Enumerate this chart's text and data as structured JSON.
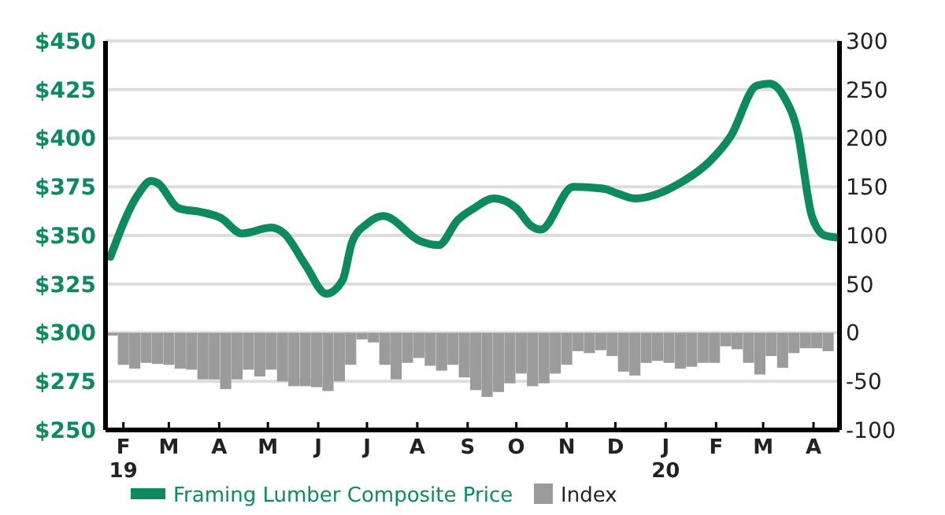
{
  "chart_data": {
    "type": "line",
    "xlim": [
      "2019-01-21",
      "2020-04-17"
    ],
    "xticks": [
      {
        "value": "2019-02-01",
        "label": "F\n19"
      },
      {
        "value": "2019-03-01",
        "label": "M"
      },
      {
        "value": "2019-04-01",
        "label": "A"
      },
      {
        "value": "2019-05-01",
        "label": "M"
      },
      {
        "value": "2019-06-01",
        "label": "J"
      },
      {
        "value": "2019-07-01",
        "label": "J"
      },
      {
        "value": "2019-08-01",
        "label": "A"
      },
      {
        "value": "2019-09-01",
        "label": "S"
      },
      {
        "value": "2019-10-01",
        "label": "O"
      },
      {
        "value": "2019-11-01",
        "label": "N"
      },
      {
        "value": "2019-12-01",
        "label": "D"
      },
      {
        "value": "2020-01-01",
        "label": "J\n20"
      },
      {
        "value": "2020-02-01",
        "label": "F"
      },
      {
        "value": "2020-03-01",
        "label": "M"
      },
      {
        "value": "2020-04-01",
        "label": "A"
      }
    ],
    "ylim": [
      250,
      450
    ],
    "yticks": [
      {
        "value": 250,
        "label": "$250"
      },
      {
        "value": 275,
        "label": "$275"
      },
      {
        "value": 300,
        "label": "$300"
      },
      {
        "value": 325,
        "label": "$325"
      },
      {
        "value": 350,
        "label": "$350"
      },
      {
        "value": 375,
        "label": "$375"
      },
      {
        "value": 400,
        "label": "$400"
      },
      {
        "value": 425,
        "label": "$425"
      },
      {
        "value": 450,
        "label": "$450"
      }
    ],
    "y2lim": [
      -100,
      300
    ],
    "y2ticks": [
      -100,
      -50,
      0,
      50,
      100,
      150,
      200,
      250,
      300
    ],
    "grid": "y",
    "legend": "bottom",
    "series": [
      {
        "type": "bar",
        "axis": "y2",
        "name": "Index",
        "color": "#9b9b9b",
        "x": [
          "2019-01-25",
          "2019-02-01",
          "2019-02-08",
          "2019-02-15",
          "2019-02-22",
          "2019-03-01",
          "2019-03-08",
          "2019-03-15",
          "2019-03-22",
          "2019-03-29",
          "2019-04-05",
          "2019-04-12",
          "2019-04-19",
          "2019-04-26",
          "2019-05-03",
          "2019-05-10",
          "2019-05-17",
          "2019-05-24",
          "2019-05-31",
          "2019-06-07",
          "2019-06-14",
          "2019-06-21",
          "2019-06-28",
          "2019-07-05",
          "2019-07-12",
          "2019-07-19",
          "2019-07-26",
          "2019-08-02",
          "2019-08-09",
          "2019-08-16",
          "2019-08-23",
          "2019-08-30",
          "2019-09-06",
          "2019-09-13",
          "2019-09-20",
          "2019-09-27",
          "2019-10-04",
          "2019-10-11",
          "2019-10-18",
          "2019-10-25",
          "2019-11-01",
          "2019-11-08",
          "2019-11-15",
          "2019-11-22",
          "2019-11-29",
          "2019-12-06",
          "2019-12-13",
          "2019-12-20",
          "2019-12-27",
          "2020-01-03",
          "2020-01-10",
          "2020-01-17",
          "2020-01-24",
          "2020-01-31",
          "2020-02-07",
          "2020-02-14",
          "2020-02-21",
          "2020-02-28",
          "2020-03-06",
          "2020-03-13",
          "2020-03-20",
          "2020-03-27",
          "2020-04-03",
          "2020-04-10"
        ],
        "values": [
          -3,
          -33,
          -37,
          -31,
          -32,
          -33,
          -37,
          -38,
          -48,
          -48,
          -58,
          -48,
          -38,
          -45,
          -38,
          -50,
          -55,
          -55,
          -56,
          -60,
          -50,
          -33,
          -7,
          -10,
          -33,
          -48,
          -31,
          -26,
          -34,
          -39,
          -33,
          -46,
          -59,
          -66,
          -61,
          -52,
          -42,
          -55,
          -52,
          -42,
          -33,
          -19,
          -21,
          -18,
          -24,
          -40,
          -44,
          -31,
          -29,
          -31,
          -37,
          -35,
          -31,
          -31,
          -14,
          -17,
          -31,
          -43,
          -24,
          -36,
          -21,
          -16,
          -16,
          -19
        ]
      },
      {
        "name": "Framing Lumber Composite Price",
        "color": "#0e8a5f",
        "x": [
          "2019-01-24",
          "2019-02-10",
          "2019-02-18",
          "2019-02-22",
          "2019-03-07",
          "2019-03-21",
          "2019-04-02",
          "2019-04-15",
          "2019-05-03",
          "2019-05-11",
          "2019-05-24",
          "2019-06-06",
          "2019-06-16",
          "2019-06-22",
          "2019-07-01",
          "2019-07-11",
          "2019-08-03",
          "2019-08-14",
          "2019-08-26",
          "2019-09-05",
          "2019-09-17",
          "2019-10-01",
          "2019-10-10",
          "2019-10-16",
          "2019-11-05",
          "2019-11-24",
          "2019-12-01",
          "2019-12-13",
          "2020-01-12",
          "2020-01-28",
          "2020-02-10",
          "2020-02-26",
          "2020-03-05",
          "2020-03-14",
          "2020-03-22",
          "2020-03-31",
          "2020-04-08",
          "2020-04-15"
        ],
        "values": [
          339,
          371,
          378,
          377,
          364,
          362,
          359,
          351,
          354,
          351,
          335,
          320,
          327,
          347,
          356,
          360,
          347,
          345,
          358,
          364,
          369,
          364,
          355,
          353,
          375,
          374,
          372,
          369,
          378,
          388,
          401,
          427,
          428,
          421,
          404,
          360,
          350,
          349
        ]
      }
    ]
  }
}
